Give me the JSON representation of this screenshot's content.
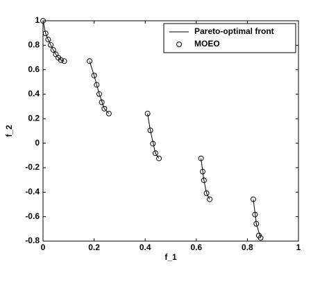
{
  "chart_data": {
    "type": "line",
    "xlabel": "f_1",
    "ylabel": "f_2",
    "xlim": [
      0,
      1
    ],
    "ylim": [
      -0.8,
      1
    ],
    "xticks": [
      0,
      0.2,
      0.4,
      0.6,
      0.8,
      1
    ],
    "yticks": [
      -0.8,
      -0.6,
      -0.4,
      -0.2,
      0,
      0.2,
      0.4,
      0.6,
      0.8,
      1
    ],
    "legend": "upper right",
    "series": [
      {
        "name": "Pareto-optimal front",
        "style": "line",
        "color": "#000000",
        "x": [
          0,
          0.01,
          0.02,
          0.03,
          0.04,
          0.05,
          0.06,
          0.07,
          0.083,
          null,
          0.1822,
          0.2,
          0.22,
          0.24,
          0.2578,
          null,
          0.4093,
          0.42,
          0.44,
          0.4539,
          null,
          0.6184,
          0.63,
          0.64,
          0.6525,
          null,
          0.8233,
          0.835,
          0.8518
        ],
        "values": [
          1,
          0.897,
          0.847,
          0.803,
          0.762,
          0.726,
          0.698,
          0.679,
          0.67,
          null,
          0.67,
          0.553,
          0.402,
          0.282,
          0.242,
          null,
          0.242,
          0.105,
          -0.082,
          -0.124,
          null,
          -0.124,
          -0.303,
          -0.409,
          -0.458,
          null,
          -0.458,
          -0.658,
          -0.773
        ]
      },
      {
        "name": "MOEO",
        "style": "scatter",
        "color": "#000000",
        "x": [
          0,
          0.01,
          0.02,
          0.03,
          0.04,
          0.05,
          0.06,
          0.07,
          0.083,
          0.1822,
          0.2,
          0.21,
          0.22,
          0.23,
          0.24,
          0.2578,
          0.4093,
          0.42,
          0.43,
          0.44,
          0.4539,
          0.6184,
          0.625,
          0.63,
          0.64,
          0.6525,
          0.8233,
          0.83,
          0.835,
          0.845,
          0.8518
        ],
        "values": [
          1,
          0.897,
          0.847,
          0.803,
          0.762,
          0.726,
          0.698,
          0.679,
          0.67,
          0.67,
          0.553,
          0.477,
          0.402,
          0.334,
          0.282,
          0.242,
          0.242,
          0.105,
          -0.004,
          -0.082,
          -0.124,
          -0.124,
          -0.232,
          -0.303,
          -0.409,
          -0.458,
          -0.458,
          -0.583,
          -0.658,
          -0.754,
          -0.773
        ]
      }
    ]
  }
}
